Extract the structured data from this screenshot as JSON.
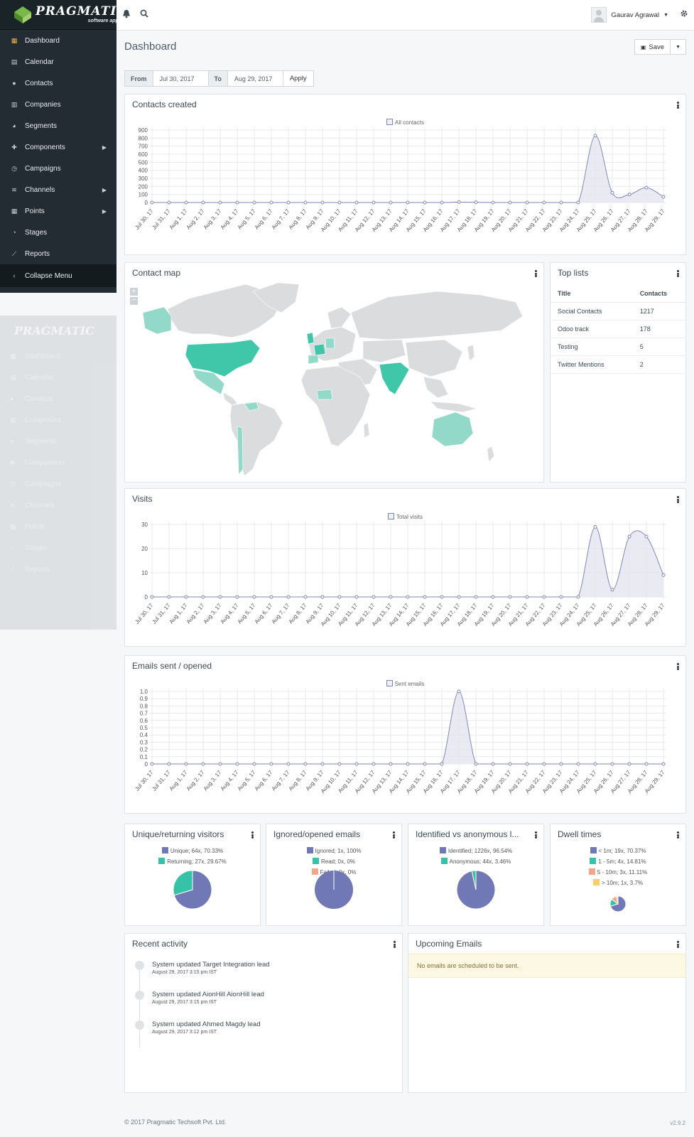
{
  "brand": {
    "name": "PRAGMATIC",
    "tagline": "software applied"
  },
  "nav": [
    {
      "label": "Dashboard",
      "icon": "grid-icon",
      "glyph": "▦",
      "active": true
    },
    {
      "label": "Calendar",
      "icon": "calendar-icon",
      "glyph": "▤"
    },
    {
      "label": "Contacts",
      "icon": "user-icon",
      "glyph": "●"
    },
    {
      "label": "Companies",
      "icon": "building-icon",
      "glyph": "▥"
    },
    {
      "label": "Segments",
      "icon": "pie-icon",
      "glyph": "◕"
    },
    {
      "label": "Components",
      "icon": "puzzle-icon",
      "glyph": "✚",
      "caret": true
    },
    {
      "label": "Campaigns",
      "icon": "clock-icon",
      "glyph": "◷"
    },
    {
      "label": "Channels",
      "icon": "rss-icon",
      "glyph": "≋",
      "caret": true
    },
    {
      "label": "Points",
      "icon": "calculator-icon",
      "glyph": "▦",
      "caret": true
    },
    {
      "label": "Stages",
      "icon": "tachometer-icon",
      "glyph": "◔"
    },
    {
      "label": "Reports",
      "icon": "chart-line-icon",
      "glyph": "⟋"
    }
  ],
  "collapse_label": "Collapse Menu",
  "user": {
    "name": "Gaurav Agrawal"
  },
  "page_title": "Dashboard",
  "save_label": "Save",
  "daterange": {
    "from_label": "From",
    "from": "Jul 30, 2017",
    "to_label": "To",
    "to": "Aug 29, 2017",
    "apply": "Apply"
  },
  "dates": [
    "Jul 30, 17",
    "Jul 31, 17",
    "Aug 1, 17",
    "Aug 2, 17",
    "Aug 3, 17",
    "Aug 4, 17",
    "Aug 5, 17",
    "Aug 6, 17",
    "Aug 7, 17",
    "Aug 8, 17",
    "Aug 9, 17",
    "Aug 10, 17",
    "Aug 11, 17",
    "Aug 12, 17",
    "Aug 13, 17",
    "Aug 14, 17",
    "Aug 15, 17",
    "Aug 16, 17",
    "Aug 17, 17",
    "Aug 18, 17",
    "Aug 19, 17",
    "Aug 20, 17",
    "Aug 21, 17",
    "Aug 22, 17",
    "Aug 23, 17",
    "Aug 24, 17",
    "Aug 25, 17",
    "Aug 26, 17",
    "Aug 27, 17",
    "Aug 28, 17",
    "Aug 29, 17"
  ],
  "panels": {
    "contacts": "Contacts created",
    "map": "Contact map",
    "toplists": "Top lists",
    "visits": "Visits",
    "emails": "Emails sent / opened",
    "unique": "Unique/returning visitors",
    "ignored": "Ignored/opened emails",
    "identified": "Identified vs anonymous l...",
    "dwell": "Dwell times",
    "recent": "Recent activity",
    "upcoming": "Upcoming Emails"
  },
  "chart_data": [
    {
      "type": "line",
      "title": "Contacts created",
      "series": [
        {
          "name": "All contacts",
          "values": [
            0,
            0,
            0,
            0,
            0,
            0,
            0,
            0,
            0,
            0,
            0,
            0,
            0,
            0,
            0,
            0,
            0,
            0,
            5,
            3,
            0,
            0,
            0,
            0,
            0,
            0,
            830,
            120,
            100,
            185,
            70
          ]
        }
      ],
      "ylim": [
        0,
        900
      ],
      "yticks": [
        0,
        100,
        200,
        300,
        400,
        500,
        600,
        700,
        800,
        900
      ]
    },
    {
      "type": "line",
      "title": "Visits",
      "series": [
        {
          "name": "Total visits",
          "values": [
            0,
            0,
            0,
            0,
            0,
            0,
            0,
            0,
            0,
            0,
            0,
            0,
            0,
            0,
            0,
            0,
            0,
            0,
            0,
            0,
            0,
            0,
            0,
            0,
            0,
            0,
            29,
            3,
            25,
            25,
            9
          ]
        }
      ],
      "ylim": [
        0,
        30
      ],
      "yticks": [
        0,
        10,
        20,
        30
      ]
    },
    {
      "type": "line",
      "title": "Emails sent / opened",
      "series": [
        {
          "name": "Sent emails",
          "values": [
            0,
            0,
            0,
            0,
            0,
            0,
            0,
            0,
            0,
            0,
            0,
            0,
            0,
            0,
            0,
            0,
            0,
            0,
            1,
            0,
            0,
            0,
            0,
            0,
            0,
            0,
            0,
            0,
            0,
            0,
            0
          ]
        }
      ],
      "ylim": [
        0,
        1
      ],
      "yticks": [
        "0",
        "0.1",
        "0.2",
        "0.3",
        "0.4",
        "0.5",
        "0.6",
        "0.7",
        "0.8",
        "0.9",
        "1.0"
      ]
    },
    {
      "type": "pie",
      "title": "Unique/returning visitors",
      "slices": [
        {
          "label": "Unique; 64x, 70.33%",
          "value": 70.33,
          "color": "#7078b5"
        },
        {
          "label": "Returning; 27x, 29.67%",
          "value": 29.67,
          "color": "#35c2a6"
        }
      ]
    },
    {
      "type": "pie",
      "title": "Ignored/opened emails",
      "slices": [
        {
          "label": "Ignored; 1x, 100%",
          "value": 100,
          "color": "#7078b5"
        },
        {
          "label": "Read; 0x, 0%",
          "value": 0,
          "color": "#35c2a6"
        },
        {
          "label": "Failed; 0x, 0%",
          "value": 0,
          "color": "#f4a58a"
        }
      ]
    },
    {
      "type": "pie",
      "title": "Identified vs anonymous l...",
      "slices": [
        {
          "label": "Identified; 1226x, 96.54%",
          "value": 96.54,
          "color": "#7078b5"
        },
        {
          "label": "Anonymous; 44x, 3.46%",
          "value": 3.46,
          "color": "#35c2a6"
        }
      ]
    },
    {
      "type": "pie",
      "title": "Dwell times",
      "slices": [
        {
          "label": "< 1m; 19x, 70.37%",
          "value": 70.37,
          "color": "#7078b5"
        },
        {
          "label": "1 - 5m; 4x, 14.81%",
          "value": 14.81,
          "color": "#35c2a6"
        },
        {
          "label": "5 - 10m; 3x, 11.11%",
          "value": 11.11,
          "color": "#f4a58a"
        },
        {
          "label": "> 10m; 1x, 3.7%",
          "value": 3.7,
          "color": "#f7cf6a"
        }
      ]
    }
  ],
  "top_lists": {
    "headers": [
      "Title",
      "Contacts"
    ],
    "rows": [
      [
        "Social Contacts",
        "1217"
      ],
      [
        "Odoo track",
        "178"
      ],
      [
        "Testing",
        "5"
      ],
      [
        "Twitter Mentions",
        "2"
      ]
    ]
  },
  "recent_activity": [
    {
      "text": "System updated Target Integration lead",
      "date": "August 29, 2017 3:15 pm IST"
    },
    {
      "text": "System updated AionHill AionHill lead",
      "date": "August 29, 2017 3:15 pm IST"
    },
    {
      "text": "System updated Ahmed Magdy lead",
      "date": "August 29, 2017 3:12 pm IST"
    }
  ],
  "upcoming_message": "No emails are scheduled to be sent.",
  "footer": "© 2017 Pragmatic Techsoft Pvt. Ltd.",
  "version": "v2.9.2",
  "colors": {
    "line": "#7f88ba",
    "area": "#e3e5ef",
    "teal": "#35c2a6",
    "map_dark": "#40c7aa",
    "map_light": "#93d9c9",
    "land": "#dadcde"
  }
}
